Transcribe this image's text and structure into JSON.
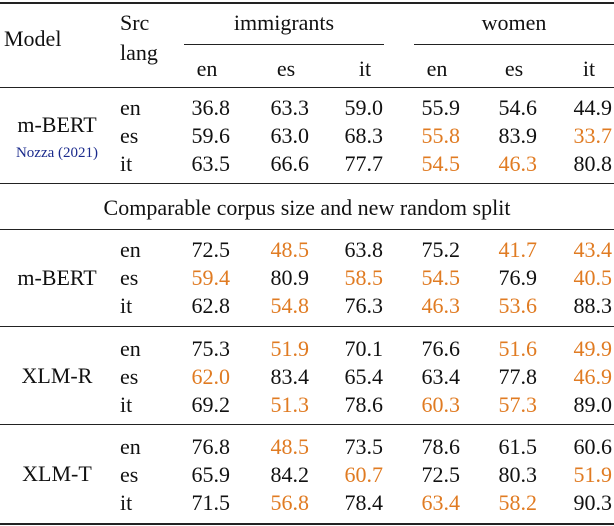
{
  "colors": {
    "highlight": "#e07b22",
    "citation": "#1a2a8c",
    "text": "#111111"
  },
  "header": {
    "model": "Model",
    "src_lang_line1": "Src",
    "src_lang_line2": "lang",
    "group1": "immigrants",
    "group2": "women",
    "cols": [
      "en",
      "es",
      "it",
      "en",
      "es",
      "it"
    ]
  },
  "section_label": "Comparable corpus size and new random split",
  "blocks": [
    {
      "model": "m-BERT",
      "citation": "Nozza (2021)",
      "rows": [
        {
          "lang": "en",
          "values": [
            "36.8",
            "63.3",
            "59.0",
            "55.9",
            "54.6",
            "44.9"
          ],
          "highlight": [
            false,
            false,
            false,
            false,
            false,
            false
          ]
        },
        {
          "lang": "es",
          "values": [
            "59.6",
            "63.0",
            "68.3",
            "55.8",
            "83.9",
            "33.7"
          ],
          "highlight": [
            false,
            false,
            false,
            true,
            false,
            true
          ]
        },
        {
          "lang": "it",
          "values": [
            "63.5",
            "66.6",
            "77.7",
            "54.5",
            "46.3",
            "80.8"
          ],
          "highlight": [
            false,
            false,
            false,
            true,
            true,
            false
          ]
        }
      ]
    },
    {
      "model": "m-BERT",
      "citation": "",
      "rows": [
        {
          "lang": "en",
          "values": [
            "72.5",
            "48.5",
            "63.8",
            "75.2",
            "41.7",
            "43.4"
          ],
          "highlight": [
            false,
            true,
            false,
            false,
            true,
            true
          ]
        },
        {
          "lang": "es",
          "values": [
            "59.4",
            "80.9",
            "58.5",
            "54.5",
            "76.9",
            "40.5"
          ],
          "highlight": [
            true,
            false,
            true,
            true,
            false,
            true
          ]
        },
        {
          "lang": "it",
          "values": [
            "62.8",
            "54.8",
            "76.3",
            "46.3",
            "53.6",
            "88.3"
          ],
          "highlight": [
            false,
            true,
            false,
            true,
            true,
            false
          ]
        }
      ]
    },
    {
      "model": "XLM-R",
      "citation": "",
      "rows": [
        {
          "lang": "en",
          "values": [
            "75.3",
            "51.9",
            "70.1",
            "76.6",
            "51.6",
            "49.9"
          ],
          "highlight": [
            false,
            true,
            false,
            false,
            true,
            true
          ]
        },
        {
          "lang": "es",
          "values": [
            "62.0",
            "83.4",
            "65.4",
            "63.4",
            "77.8",
            "46.9"
          ],
          "highlight": [
            true,
            false,
            false,
            false,
            false,
            true
          ]
        },
        {
          "lang": "it",
          "values": [
            "69.2",
            "51.3",
            "78.6",
            "60.3",
            "57.3",
            "89.0"
          ],
          "highlight": [
            false,
            true,
            false,
            true,
            true,
            false
          ]
        }
      ]
    },
    {
      "model": "XLM-T",
      "citation": "",
      "rows": [
        {
          "lang": "en",
          "values": [
            "76.8",
            "48.5",
            "73.5",
            "78.6",
            "61.5",
            "60.6"
          ],
          "highlight": [
            false,
            true,
            false,
            false,
            false,
            false
          ]
        },
        {
          "lang": "es",
          "values": [
            "65.9",
            "84.2",
            "60.7",
            "72.5",
            "80.3",
            "51.9"
          ],
          "highlight": [
            false,
            false,
            true,
            false,
            false,
            true
          ]
        },
        {
          "lang": "it",
          "values": [
            "71.5",
            "56.8",
            "78.4",
            "63.4",
            "58.2",
            "90.3"
          ],
          "highlight": [
            false,
            true,
            false,
            true,
            true,
            false
          ]
        }
      ]
    }
  ]
}
